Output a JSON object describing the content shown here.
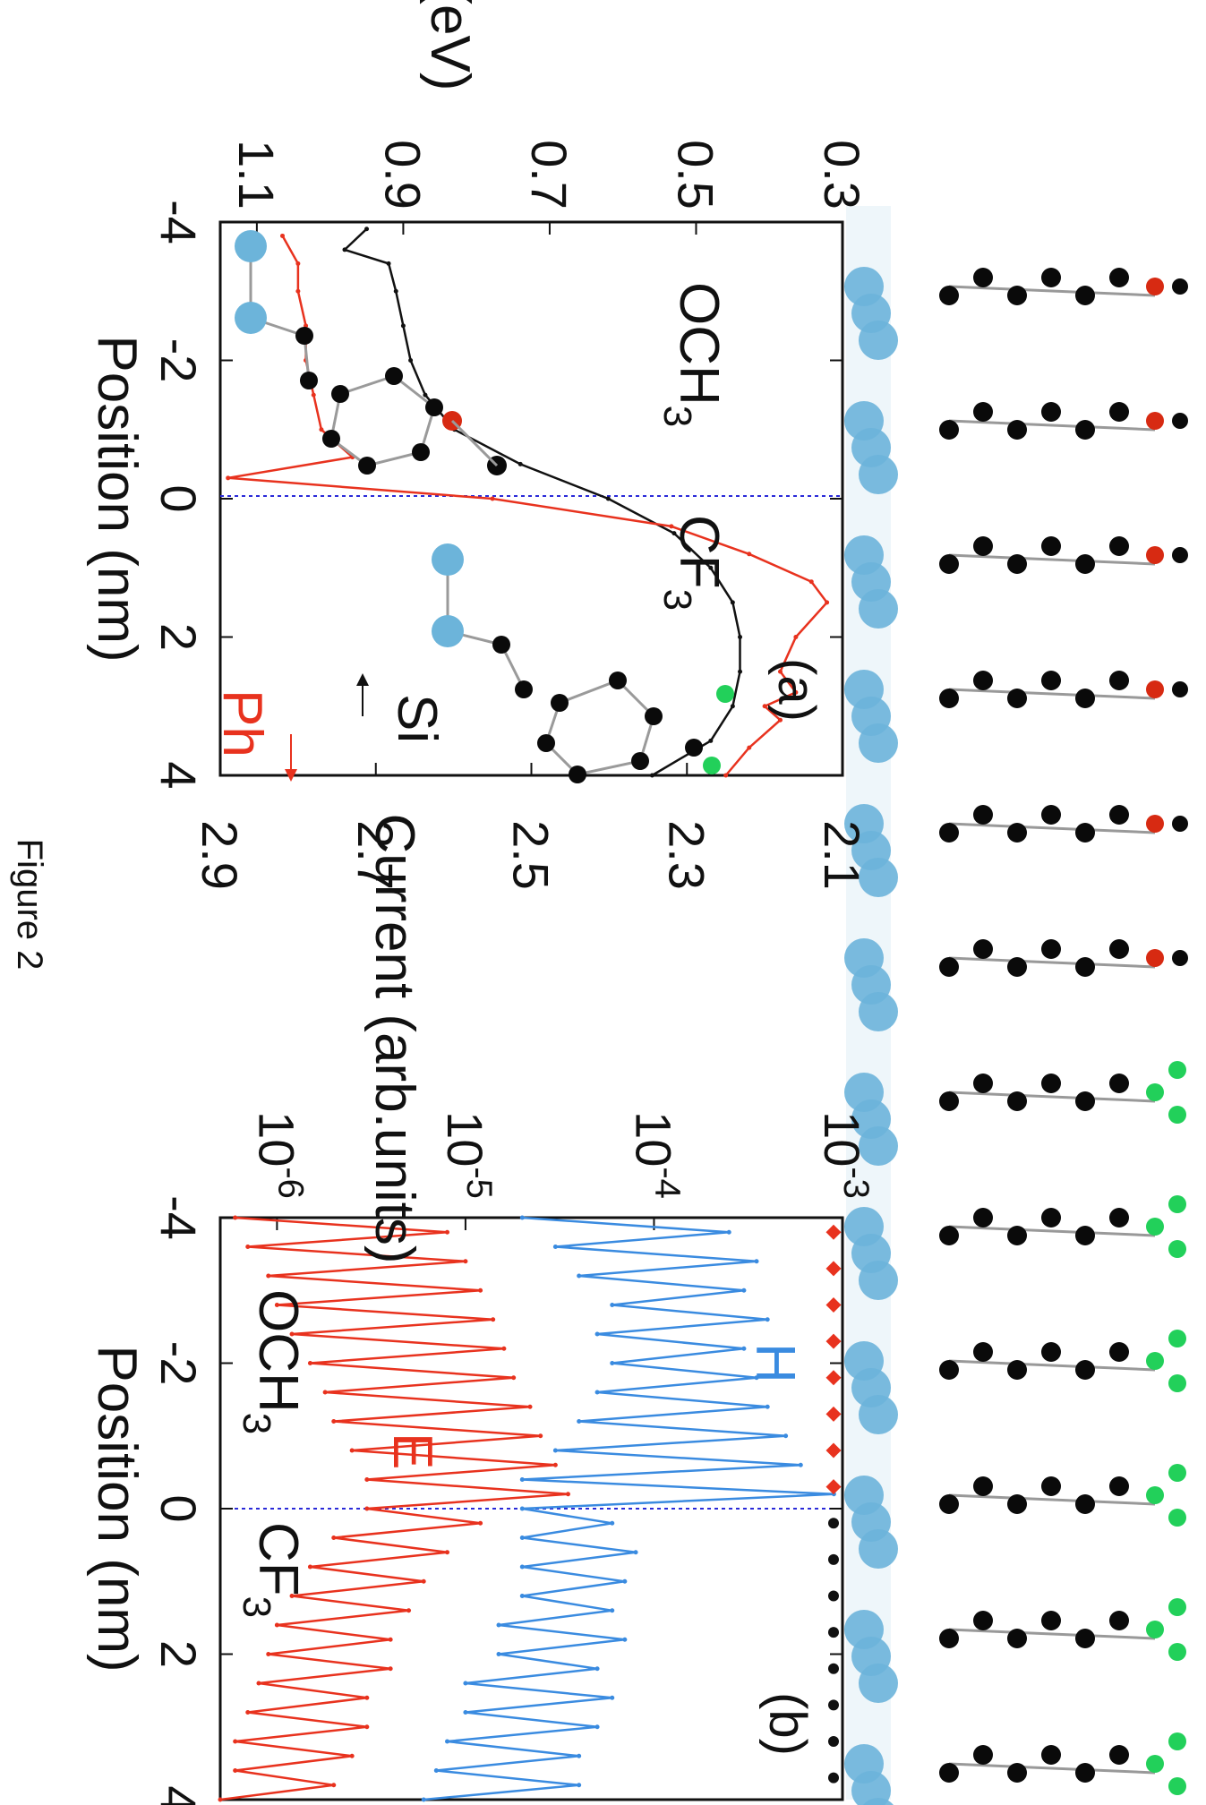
{
  "figure": {
    "caption": "Figure 2",
    "colors": {
      "red": "#e8321e",
      "black": "#111111",
      "blue": "#3a8be0",
      "silicon": "#6cb4da",
      "oxygen": "#d72a12",
      "fluorine": "#22d05a",
      "carbon": "#0a0a0a",
      "hydrogen": "#eeeeee",
      "dashed": "#2a2ad8"
    }
  },
  "chart_data": [
    {
      "panel": "(a)",
      "type": "line",
      "xlabel": "Position (nm)",
      "ylabel_left": "En(eV)",
      "xlim": [
        -4,
        4
      ],
      "ylim_left": [
        0.3,
        1.15
      ],
      "ylim_right": [
        2.1,
        2.9
      ],
      "xticks": [
        "-4",
        "-2",
        "0",
        "2",
        "4"
      ],
      "yticks_left": [
        "0.3",
        "0.5",
        "0.7",
        "0.9",
        "1.1"
      ],
      "yticks_right": [
        "2.1",
        "2.3",
        "2.5",
        "2.7",
        "2.9"
      ],
      "interface_x": 0.2,
      "labels": {
        "left_group": "OCH3",
        "right_group": "CF3",
        "si_label": "Si",
        "ph_label": "Ph",
        "panel_label": "(a)"
      },
      "series": [
        {
          "name": "Si",
          "axis": "left",
          "color_key": "black",
          "x": [
            -3.9,
            -3.6,
            -3.4,
            -3.0,
            -2.5,
            -2.0,
            -1.5,
            -1.0,
            -0.5,
            0.0,
            0.5,
            1.0,
            1.5,
            2.0,
            2.5,
            3.0,
            3.5,
            4.0
          ],
          "y": [
            0.95,
            0.98,
            0.92,
            0.91,
            0.9,
            0.89,
            0.87,
            0.83,
            0.74,
            0.62,
            0.53,
            0.48,
            0.45,
            0.44,
            0.44,
            0.45,
            0.48,
            0.56
          ]
        },
        {
          "name": "Ph",
          "axis": "right",
          "color_key": "red",
          "x": [
            -3.8,
            -3.4,
            -3.0,
            -2.5,
            -2.0,
            -1.5,
            -1.0,
            -0.6,
            -0.3,
            0.0,
            0.4,
            0.8,
            1.2,
            1.5,
            2.0,
            2.5,
            2.8,
            3.0,
            3.2,
            3.6,
            4.0
          ],
          "y": [
            2.82,
            2.8,
            2.8,
            2.79,
            2.79,
            2.78,
            2.77,
            2.73,
            2.89,
            2.55,
            2.32,
            2.22,
            2.14,
            2.12,
            2.16,
            2.18,
            2.16,
            2.2,
            2.18,
            2.22,
            2.25
          ]
        }
      ]
    },
    {
      "panel": "(b)",
      "type": "line",
      "xlabel": "Position (nm)",
      "ylabel": "Current (arb.units)",
      "yscale": "log",
      "xlim": [
        -4,
        4
      ],
      "ylim": [
        5e-07,
        0.001
      ],
      "xticks": [
        "-4",
        "-2",
        "0",
        "2",
        "4"
      ],
      "yticks_base": "10",
      "yticks_exp": [
        "-6",
        "-5",
        "-4",
        "-3"
      ],
      "interface_x": 0.0,
      "labels": {
        "hole": "H",
        "electron": "E",
        "left_group": "OCH3",
        "right_group": "CF3",
        "panel_label": "(b)"
      },
      "series": [
        {
          "name": "H",
          "color_key": "blue",
          "x": [
            -4.0,
            -3.8,
            -3.6,
            -3.4,
            -3.2,
            -3.0,
            -2.8,
            -2.6,
            -2.4,
            -2.2,
            -2.0,
            -1.8,
            -1.6,
            -1.4,
            -1.2,
            -1.0,
            -0.8,
            -0.6,
            -0.4,
            -0.2,
            0.0,
            0.2,
            0.4,
            0.6,
            0.8,
            1.0,
            1.2,
            1.4,
            1.6,
            1.8,
            2.0,
            2.2,
            2.4,
            2.6,
            2.8,
            3.0,
            3.2,
            3.4,
            3.6,
            3.8,
            4.0
          ],
          "y": [
            2e-05,
            0.00025,
            3e-05,
            0.00035,
            4e-05,
            0.0003,
            6e-05,
            0.0004,
            5e-05,
            0.0003,
            6e-05,
            0.00035,
            5e-05,
            0.0004,
            4e-05,
            0.0005,
            3e-05,
            0.0006,
            2e-05,
            0.0009,
            2e-05,
            6e-05,
            2e-05,
            8e-05,
            2e-05,
            7e-05,
            2e-05,
            6e-05,
            1.5e-05,
            7e-05,
            1.5e-05,
            5e-05,
            1e-05,
            6e-05,
            1e-05,
            5e-05,
            8e-06,
            4e-05,
            7e-06,
            4e-05,
            6e-06
          ]
        },
        {
          "name": "E",
          "color_key": "red",
          "x": [
            -4.0,
            -3.8,
            -3.6,
            -3.4,
            -3.2,
            -3.0,
            -2.8,
            -2.6,
            -2.4,
            -2.2,
            -2.0,
            -1.8,
            -1.6,
            -1.4,
            -1.2,
            -1.0,
            -0.8,
            -0.6,
            -0.4,
            -0.2,
            0.0,
            0.2,
            0.4,
            0.6,
            0.8,
            1.0,
            1.2,
            1.4,
            1.6,
            1.8,
            2.0,
            2.2,
            2.4,
            2.6,
            2.8,
            3.0,
            3.2,
            3.4,
            3.6,
            3.8,
            4.0
          ],
          "y": [
            6e-07,
            8e-06,
            7e-07,
            1e-05,
            9e-07,
            1.2e-05,
            1e-06,
            1.4e-05,
            1.2e-06,
            1.6e-05,
            1.5e-06,
            1.8e-05,
            1.8e-06,
            2.2e-05,
            2e-06,
            2.5e-05,
            2.5e-06,
            3e-05,
            3e-06,
            3.5e-05,
            3e-06,
            1.2e-05,
            2e-06,
            8e-06,
            1.5e-06,
            6e-06,
            1.2e-06,
            5e-06,
            1e-06,
            4e-06,
            9e-07,
            4e-06,
            8e-07,
            3e-06,
            7e-07,
            3e-06,
            6e-07,
            2.5e-06,
            6e-07,
            2e-06,
            5e-07
          ]
        }
      ]
    }
  ]
}
